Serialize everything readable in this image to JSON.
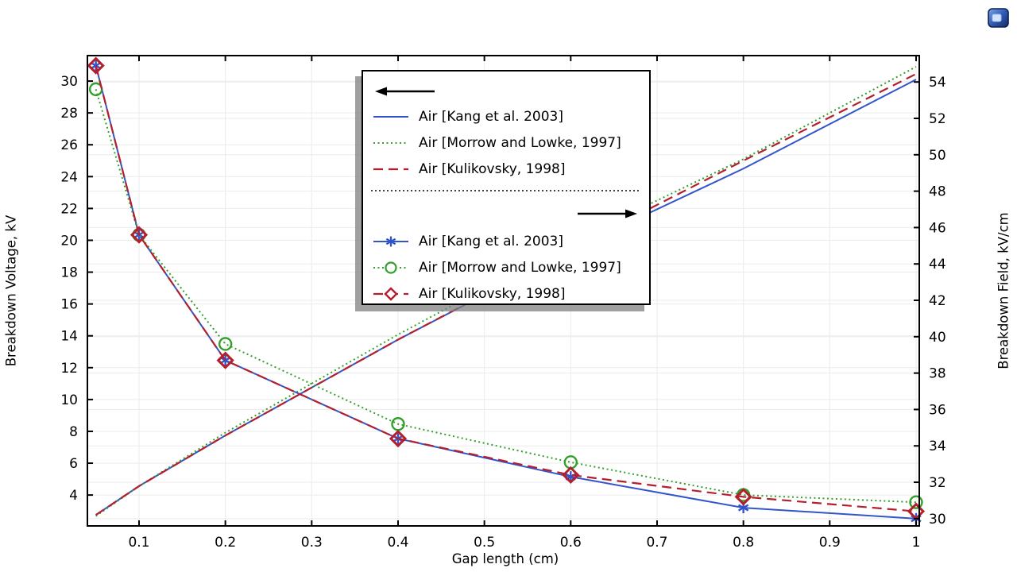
{
  "chart_data": {
    "type": "line",
    "title": "",
    "xlabel": "Gap length (cm)",
    "ylabel_left": "Breakdown Voltage, kV",
    "ylabel_right": "Breakdown Field, kV/cm",
    "grid": true,
    "legend_position": "upper-center",
    "x_axis": {
      "min": 0.0402,
      "max": 1.0037,
      "ticks": [
        0.1,
        0.2,
        0.3,
        0.4,
        0.5,
        0.6,
        0.7,
        0.8,
        0.9,
        1
      ],
      "tick_labels": [
        "0.1",
        "0.2",
        "0.3",
        "0.4",
        "0.5",
        "0.6",
        "0.7",
        "0.8",
        "0.9",
        "1"
      ]
    },
    "y_left": {
      "min": 2.06,
      "max": 31.6,
      "ticks": [
        4,
        6,
        8,
        10,
        12,
        14,
        16,
        18,
        20,
        22,
        24,
        26,
        28,
        30
      ]
    },
    "y_right": {
      "min": 29.6,
      "max": 55.45,
      "ticks": [
        30,
        32,
        34,
        36,
        38,
        40,
        42,
        44,
        46,
        48,
        50,
        52,
        54
      ]
    },
    "gap_cm": [
      0.05,
      0.1,
      0.2,
      0.4,
      0.6,
      0.8,
      1.0
    ],
    "series": [
      {
        "name": "Air [Kang et al. 2003]",
        "quantity": "Breakdown Voltage, kV",
        "axis": "left",
        "color": "#3355cc",
        "style": "solid",
        "marker": "none",
        "values": [
          2.75,
          4.56,
          7.74,
          13.76,
          19.4,
          24.5,
          30.1
        ]
      },
      {
        "name": "Air [Morrow and Lowke, 1997]",
        "quantity": "Breakdown Voltage, kV",
        "axis": "left",
        "color": "#33a02c",
        "style": "dotted",
        "marker": "none",
        "values": [
          2.68,
          4.56,
          7.92,
          14.08,
          19.9,
          25.1,
          30.9
        ]
      },
      {
        "name": "Air [Kulikovsky, 1998]",
        "quantity": "Breakdown Voltage, kV",
        "axis": "left",
        "color": "#b41f2e",
        "style": "dashed",
        "marker": "none",
        "values": [
          2.75,
          4.56,
          7.74,
          13.76,
          19.45,
          25.0,
          30.45
        ]
      },
      {
        "name": "Air [Kang et al. 2003]",
        "quantity": "Breakdown Field, kV/cm",
        "axis": "right",
        "color": "#3355cc",
        "style": "solid",
        "marker": "star",
        "values": [
          54.9,
          45.6,
          38.7,
          34.4,
          32.3,
          30.6,
          30.0
        ]
      },
      {
        "name": "Air [Morrow and Lowke, 1997]",
        "quantity": "Breakdown Field, kV/cm",
        "axis": "right",
        "color": "#33a02c",
        "style": "dotted",
        "marker": "circle",
        "values": [
          53.6,
          45.6,
          39.6,
          35.2,
          33.1,
          31.3,
          30.9
        ]
      },
      {
        "name": "Air [Kulikovsky, 1998]",
        "quantity": "Breakdown Field, kV/cm",
        "axis": "right",
        "color": "#b41f2e",
        "style": "dashed",
        "marker": "diamond",
        "values": [
          54.9,
          45.6,
          38.7,
          34.4,
          32.4,
          31.2,
          30.4
        ]
      }
    ]
  },
  "legend": {
    "voltage_group_arrow": "left-arrow",
    "field_group_arrow": "right-arrow",
    "separator": "dotted-line"
  },
  "colors": {
    "grid": "#ebebeb",
    "axis": "#000000",
    "blue": "#3355cc",
    "green": "#33a02c",
    "red": "#b41f2e",
    "legend_shadow": "#808080"
  },
  "window": {
    "floating_icon": "plot-window-icon"
  }
}
